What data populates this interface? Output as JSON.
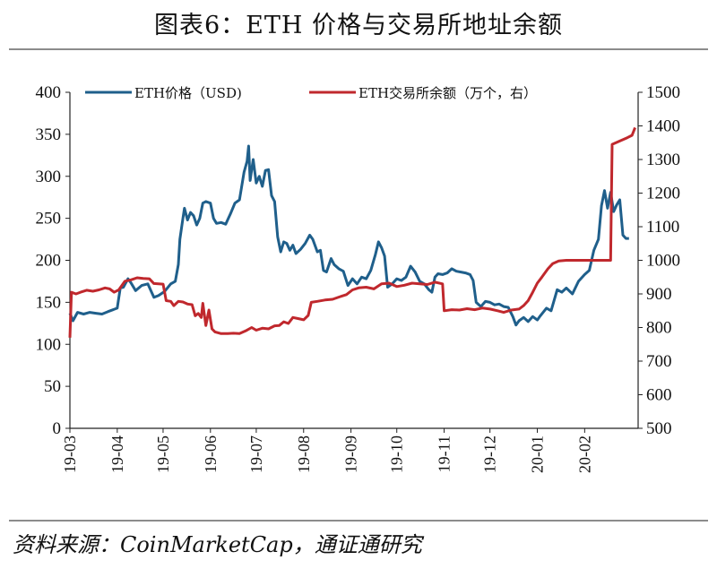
{
  "figure": {
    "title": "图表6：ETH 价格与交易所地址余额",
    "source": "资料来源：CoinMarketCap，通证通研究"
  },
  "chart_data": {
    "type": "line",
    "x_ticks": [
      "19-03",
      "19-04",
      "19-05",
      "19-06",
      "19-07",
      "19-08",
      "19-09",
      "19-10",
      "19-11",
      "19-12",
      "20-01",
      "20-02"
    ],
    "x_range": [
      "2019-03-01",
      "2020-03-07"
    ],
    "y_left": {
      "ylim": [
        0,
        400
      ],
      "ticks": [
        "0",
        "50",
        "100",
        "150",
        "200",
        "250",
        "300",
        "350",
        "400"
      ]
    },
    "y_right": {
      "ylim": [
        500,
        1500
      ],
      "ticks": [
        "500",
        "600",
        "700",
        "800",
        "900",
        "1000",
        "1100",
        "1200",
        "1300",
        "1400",
        "1500"
      ]
    },
    "grid": false,
    "legend_placement": "top",
    "series": [
      {
        "name": "ETH价格（USD)",
        "axis": "left",
        "color": "#1f5f8b",
        "points": [
          [
            "2019-03-01",
            137
          ],
          [
            "2019-03-03",
            128
          ],
          [
            "2019-03-06",
            138
          ],
          [
            "2019-03-10",
            136
          ],
          [
            "2019-03-14",
            138
          ],
          [
            "2019-03-18",
            137
          ],
          [
            "2019-03-22",
            136
          ],
          [
            "2019-03-26",
            139
          ],
          [
            "2019-03-29",
            141
          ],
          [
            "2019-04-01",
            143
          ],
          [
            "2019-04-03",
            167
          ],
          [
            "2019-04-05",
            168
          ],
          [
            "2019-04-08",
            178
          ],
          [
            "2019-04-10",
            173
          ],
          [
            "2019-04-13",
            164
          ],
          [
            "2019-04-17",
            170
          ],
          [
            "2019-04-21",
            172
          ],
          [
            "2019-04-25",
            156
          ],
          [
            "2019-04-28",
            158
          ],
          [
            "2019-05-02",
            163
          ],
          [
            "2019-05-06",
            172
          ],
          [
            "2019-05-09",
            175
          ],
          [
            "2019-05-11",
            195
          ],
          [
            "2019-05-12",
            225
          ],
          [
            "2019-05-14",
            250
          ],
          [
            "2019-05-15",
            262
          ],
          [
            "2019-05-17",
            248
          ],
          [
            "2019-05-19",
            257
          ],
          [
            "2019-05-21",
            253
          ],
          [
            "2019-05-23",
            242
          ],
          [
            "2019-05-25",
            250
          ],
          [
            "2019-05-27",
            268
          ],
          [
            "2019-05-29",
            270
          ],
          [
            "2019-06-01",
            268
          ],
          [
            "2019-06-03",
            250
          ],
          [
            "2019-06-05",
            244
          ],
          [
            "2019-06-08",
            245
          ],
          [
            "2019-06-11",
            243
          ],
          [
            "2019-06-14",
            255
          ],
          [
            "2019-06-17",
            268
          ],
          [
            "2019-06-20",
            272
          ],
          [
            "2019-06-23",
            305
          ],
          [
            "2019-06-25",
            318
          ],
          [
            "2019-06-26",
            336
          ],
          [
            "2019-06-27",
            295
          ],
          [
            "2019-06-29",
            320
          ],
          [
            "2019-07-01",
            292
          ],
          [
            "2019-07-03",
            300
          ],
          [
            "2019-07-05",
            288
          ],
          [
            "2019-07-07",
            307
          ],
          [
            "2019-07-09",
            308
          ],
          [
            "2019-07-11",
            277
          ],
          [
            "2019-07-13",
            270
          ],
          [
            "2019-07-15",
            228
          ],
          [
            "2019-07-17",
            210
          ],
          [
            "2019-07-19",
            222
          ],
          [
            "2019-07-21",
            220
          ],
          [
            "2019-07-23",
            212
          ],
          [
            "2019-07-25",
            218
          ],
          [
            "2019-07-27",
            208
          ],
          [
            "2019-07-30",
            213
          ],
          [
            "2019-08-02",
            220
          ],
          [
            "2019-08-05",
            230
          ],
          [
            "2019-08-07",
            225
          ],
          [
            "2019-08-10",
            210
          ],
          [
            "2019-08-12",
            212
          ],
          [
            "2019-08-14",
            188
          ],
          [
            "2019-08-16",
            186
          ],
          [
            "2019-08-19",
            202
          ],
          [
            "2019-08-21",
            195
          ],
          [
            "2019-08-24",
            190
          ],
          [
            "2019-08-27",
            187
          ],
          [
            "2019-08-30",
            170
          ],
          [
            "2019-09-02",
            178
          ],
          [
            "2019-09-05",
            172
          ],
          [
            "2019-09-08",
            180
          ],
          [
            "2019-09-11",
            178
          ],
          [
            "2019-09-14",
            188
          ],
          [
            "2019-09-17",
            207
          ],
          [
            "2019-09-19",
            222
          ],
          [
            "2019-09-21",
            215
          ],
          [
            "2019-09-23",
            205
          ],
          [
            "2019-09-25",
            168
          ],
          [
            "2019-09-28",
            172
          ],
          [
            "2019-10-01",
            178
          ],
          [
            "2019-10-04",
            176
          ],
          [
            "2019-10-07",
            180
          ],
          [
            "2019-10-10",
            193
          ],
          [
            "2019-10-13",
            186
          ],
          [
            "2019-10-16",
            175
          ],
          [
            "2019-10-19",
            172
          ],
          [
            "2019-10-22",
            165
          ],
          [
            "2019-10-24",
            162
          ],
          [
            "2019-10-26",
            180
          ],
          [
            "2019-10-28",
            184
          ],
          [
            "2019-10-31",
            183
          ],
          [
            "2019-11-03",
            185
          ],
          [
            "2019-11-06",
            190
          ],
          [
            "2019-11-09",
            187
          ],
          [
            "2019-11-12",
            186
          ],
          [
            "2019-11-15",
            185
          ],
          [
            "2019-11-18",
            183
          ],
          [
            "2019-11-20",
            176
          ],
          [
            "2019-11-22",
            150
          ],
          [
            "2019-11-25",
            145
          ],
          [
            "2019-11-28",
            151
          ],
          [
            "2019-12-01",
            150
          ],
          [
            "2019-12-04",
            147
          ],
          [
            "2019-12-07",
            148
          ],
          [
            "2019-12-10",
            145
          ],
          [
            "2019-12-13",
            144
          ],
          [
            "2019-12-16",
            133
          ],
          [
            "2019-12-18",
            123
          ],
          [
            "2019-12-20",
            128
          ],
          [
            "2019-12-23",
            132
          ],
          [
            "2019-12-26",
            127
          ],
          [
            "2019-12-29",
            133
          ],
          [
            "2020-01-01",
            129
          ],
          [
            "2020-01-03",
            134
          ],
          [
            "2020-01-07",
            143
          ],
          [
            "2020-01-10",
            140
          ],
          [
            "2020-01-14",
            165
          ],
          [
            "2020-01-17",
            162
          ],
          [
            "2020-01-20",
            167
          ],
          [
            "2020-01-24",
            160
          ],
          [
            "2020-01-28",
            175
          ],
          [
            "2020-02-01",
            183
          ],
          [
            "2020-02-04",
            188
          ],
          [
            "2020-02-07",
            212
          ],
          [
            "2020-02-10",
            225
          ],
          [
            "2020-02-12",
            265
          ],
          [
            "2020-02-14",
            283
          ],
          [
            "2020-02-16",
            262
          ],
          [
            "2020-02-18",
            281
          ],
          [
            "2020-02-20",
            258
          ],
          [
            "2020-02-22",
            266
          ],
          [
            "2020-02-24",
            272
          ],
          [
            "2020-02-26",
            230
          ],
          [
            "2020-02-28",
            226
          ],
          [
            "2020-03-01",
            226
          ]
        ]
      },
      {
        "name": "ETH交易所余额（万个，右）",
        "axis": "right",
        "color": "#c0282d",
        "points": [
          [
            "2019-03-01",
            770
          ],
          [
            "2019-03-02",
            905
          ],
          [
            "2019-03-05",
            900
          ],
          [
            "2019-03-08",
            905
          ],
          [
            "2019-03-12",
            911
          ],
          [
            "2019-03-16",
            908
          ],
          [
            "2019-03-20",
            912
          ],
          [
            "2019-03-24",
            918
          ],
          [
            "2019-03-27",
            915
          ],
          [
            "2019-03-30",
            905
          ],
          [
            "2019-04-02",
            912
          ],
          [
            "2019-04-06",
            938
          ],
          [
            "2019-04-10",
            942
          ],
          [
            "2019-04-14",
            948
          ],
          [
            "2019-04-18",
            946
          ],
          [
            "2019-04-22",
            945
          ],
          [
            "2019-04-25",
            931
          ],
          [
            "2019-04-28",
            930
          ],
          [
            "2019-05-01",
            929
          ],
          [
            "2019-05-03",
            880
          ],
          [
            "2019-05-06",
            878
          ],
          [
            "2019-05-08",
            865
          ],
          [
            "2019-05-11",
            878
          ],
          [
            "2019-05-14",
            876
          ],
          [
            "2019-05-17",
            870
          ],
          [
            "2019-05-20",
            868
          ],
          [
            "2019-05-22",
            835
          ],
          [
            "2019-05-24",
            842
          ],
          [
            "2019-05-26",
            830
          ],
          [
            "2019-05-27",
            872
          ],
          [
            "2019-05-29",
            806
          ],
          [
            "2019-05-31",
            852
          ],
          [
            "2019-06-02",
            796
          ],
          [
            "2019-06-04",
            787
          ],
          [
            "2019-06-08",
            782
          ],
          [
            "2019-06-12",
            782
          ],
          [
            "2019-06-16",
            783
          ],
          [
            "2019-06-20",
            782
          ],
          [
            "2019-06-24",
            790
          ],
          [
            "2019-06-28",
            800
          ],
          [
            "2019-07-01",
            792
          ],
          [
            "2019-07-05",
            798
          ],
          [
            "2019-07-09",
            796
          ],
          [
            "2019-07-13",
            805
          ],
          [
            "2019-07-16",
            806
          ],
          [
            "2019-07-19",
            817
          ],
          [
            "2019-07-22",
            812
          ],
          [
            "2019-07-25",
            830
          ],
          [
            "2019-07-28",
            827
          ],
          [
            "2019-08-01",
            823
          ],
          [
            "2019-08-04",
            836
          ],
          [
            "2019-08-06",
            875
          ],
          [
            "2019-08-10",
            878
          ],
          [
            "2019-08-15",
            882
          ],
          [
            "2019-08-20",
            884
          ],
          [
            "2019-08-25",
            892
          ],
          [
            "2019-08-29",
            898
          ],
          [
            "2019-09-02",
            912
          ],
          [
            "2019-09-06",
            918
          ],
          [
            "2019-09-11",
            920
          ],
          [
            "2019-09-16",
            915
          ],
          [
            "2019-09-21",
            930
          ],
          [
            "2019-09-26",
            932
          ],
          [
            "2019-10-01",
            922
          ],
          [
            "2019-10-06",
            926
          ],
          [
            "2019-10-11",
            932
          ],
          [
            "2019-10-16",
            930
          ],
          [
            "2019-10-21",
            928
          ],
          [
            "2019-10-26",
            935
          ],
          [
            "2019-10-31",
            930
          ],
          [
            "2019-11-01",
            850
          ],
          [
            "2019-11-06",
            853
          ],
          [
            "2019-11-11",
            852
          ],
          [
            "2019-11-16",
            856
          ],
          [
            "2019-11-21",
            853
          ],
          [
            "2019-11-26",
            858
          ],
          [
            "2019-12-01",
            855
          ],
          [
            "2019-12-06",
            850
          ],
          [
            "2019-12-10",
            845
          ],
          [
            "2019-12-15",
            852
          ],
          [
            "2019-12-20",
            855
          ],
          [
            "2019-12-23",
            865
          ],
          [
            "2019-12-26",
            880
          ],
          [
            "2019-12-29",
            905
          ],
          [
            "2020-01-01",
            932
          ],
          [
            "2020-01-04",
            950
          ],
          [
            "2020-01-08",
            975
          ],
          [
            "2020-01-11",
            990
          ],
          [
            "2020-01-15",
            998
          ],
          [
            "2020-01-20",
            1000
          ],
          [
            "2020-01-30",
            1000
          ],
          [
            "2020-02-10",
            1000
          ],
          [
            "2020-02-18",
            1000
          ],
          [
            "2020-02-19",
            1345
          ],
          [
            "2020-02-24",
            1355
          ],
          [
            "2020-02-29",
            1365
          ],
          [
            "2020-03-03",
            1372
          ],
          [
            "2020-03-05",
            1395
          ]
        ]
      }
    ]
  }
}
